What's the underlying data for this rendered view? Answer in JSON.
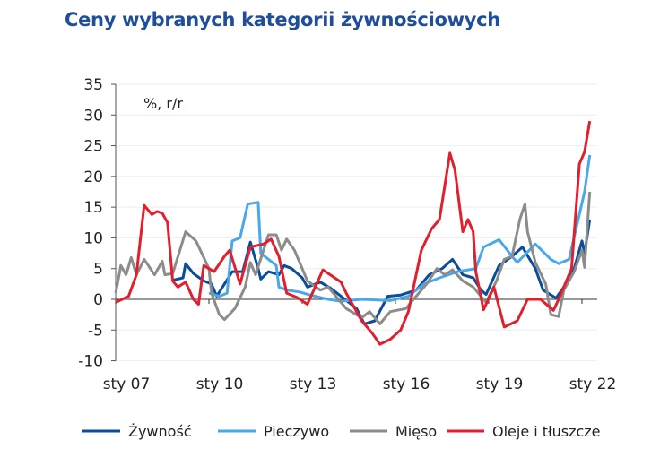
{
  "title": "Ceny wybranych kategorii żywnościowych",
  "chart_data": {
    "type": "line",
    "title": "Ceny wybranych kategorii żywnościowych",
    "unit_label": "%, r/r",
    "xlabel": "",
    "ylabel": "",
    "ylim": [
      -10,
      35
    ],
    "yticks": [
      -10,
      -5,
      0,
      5,
      10,
      15,
      20,
      25,
      30,
      35
    ],
    "xlim": [
      "2007-01",
      "2022-04"
    ],
    "xticks": [
      {
        "date": "2007-01",
        "label": "sty 07"
      },
      {
        "date": "2010-01",
        "label": "sty 10"
      },
      {
        "date": "2013-01",
        "label": "sty 13"
      },
      {
        "date": "2016-01",
        "label": "sty 16"
      },
      {
        "date": "2019-01",
        "label": "sty 19"
      },
      {
        "date": "2022-01",
        "label": "sty 22"
      }
    ],
    "grid": true,
    "legend_position": "bottom",
    "series": [
      {
        "name": "Żywność",
        "color": "#0b4d9a",
        "points": [
          [
            "2008-11",
            3.1
          ],
          [
            "2009-03",
            3.5
          ],
          [
            "2009-04",
            5.8
          ],
          [
            "2009-07",
            4.2
          ],
          [
            "2009-11",
            3
          ],
          [
            "2010-02",
            2.5
          ],
          [
            "2010-04",
            0.5
          ],
          [
            "2010-07",
            2.5
          ],
          [
            "2010-10",
            4.5
          ],
          [
            "2011-02",
            4.5
          ],
          [
            "2011-05",
            9.3
          ],
          [
            "2011-08",
            5
          ],
          [
            "2011-09",
            3.3
          ],
          [
            "2011-12",
            4.5
          ],
          [
            "2012-04",
            4
          ],
          [
            "2012-06",
            5.5
          ],
          [
            "2012-09",
            5
          ],
          [
            "2013-01",
            3.5
          ],
          [
            "2013-03",
            2
          ],
          [
            "2013-08",
            2.8
          ],
          [
            "2013-12",
            1.8
          ],
          [
            "2014-04",
            0.5
          ],
          [
            "2014-10",
            -1.5
          ],
          [
            "2015-01",
            -4
          ],
          [
            "2015-05",
            -3.5
          ],
          [
            "2015-10",
            0.5
          ],
          [
            "2016-03",
            0.7
          ],
          [
            "2016-09",
            1.5
          ],
          [
            "2017-02",
            4
          ],
          [
            "2017-07",
            5
          ],
          [
            "2017-11",
            6.5
          ],
          [
            "2018-03",
            4
          ],
          [
            "2018-07",
            3.5
          ],
          [
            "2018-10",
            1.5
          ],
          [
            "2018-12",
            0.8
          ],
          [
            "2019-05",
            5.5
          ],
          [
            "2019-10",
            7
          ],
          [
            "2020-02",
            8.5
          ],
          [
            "2020-07",
            5
          ],
          [
            "2020-10",
            1.5
          ],
          [
            "2021-03",
            0.2
          ],
          [
            "2021-06",
            2
          ],
          [
            "2021-10",
            5
          ],
          [
            "2022-01",
            9.5
          ],
          [
            "2022-02",
            7.5
          ],
          [
            "2022-04",
            13
          ]
        ]
      },
      {
        "name": "Pieczywo",
        "color": "#4aa8e8",
        "points": [
          [
            "2010-01",
            1
          ],
          [
            "2010-05",
            0.5
          ],
          [
            "2010-08",
            1
          ],
          [
            "2010-10",
            9.5
          ],
          [
            "2011-01",
            10
          ],
          [
            "2011-04",
            15.5
          ],
          [
            "2011-08",
            15.8
          ],
          [
            "2011-09",
            7.5
          ],
          [
            "2012-03",
            5.5
          ],
          [
            "2012-04",
            2
          ],
          [
            "2012-07",
            1.5
          ],
          [
            "2012-12",
            1.2
          ],
          [
            "2013-04",
            0.7
          ],
          [
            "2013-11",
            0
          ],
          [
            "2014-04",
            -0.3
          ],
          [
            "2014-12",
            0
          ],
          [
            "2015-11",
            -0.2
          ],
          [
            "2016-06",
            0.5
          ],
          [
            "2016-12",
            2.5
          ],
          [
            "2017-06",
            3.5
          ],
          [
            "2018-01",
            4.5
          ],
          [
            "2018-08",
            5
          ],
          [
            "2018-11",
            8.5
          ],
          [
            "2019-05",
            9.7
          ],
          [
            "2019-10",
            7
          ],
          [
            "2019-12",
            6
          ],
          [
            "2020-07",
            9
          ],
          [
            "2021-01",
            6.5
          ],
          [
            "2021-04",
            5.8
          ],
          [
            "2021-08",
            6.5
          ],
          [
            "2021-11",
            12
          ],
          [
            "2022-02",
            17.5
          ],
          [
            "2022-04",
            23.5
          ]
        ]
      },
      {
        "name": "Mięso",
        "color": "#8c8c8c",
        "points": [
          [
            "2007-01",
            1
          ],
          [
            "2007-03",
            5.5
          ],
          [
            "2007-05",
            4
          ],
          [
            "2007-07",
            6.8
          ],
          [
            "2007-09",
            4
          ],
          [
            "2007-12",
            6.5
          ],
          [
            "2008-04",
            4
          ],
          [
            "2008-07",
            6.2
          ],
          [
            "2008-08",
            4
          ],
          [
            "2008-11",
            4.2
          ],
          [
            "2009-04",
            11
          ],
          [
            "2009-08",
            9.5
          ],
          [
            "2010-01",
            5
          ],
          [
            "2010-02",
            1
          ],
          [
            "2010-05",
            -2.5
          ],
          [
            "2010-07",
            -3.3
          ],
          [
            "2010-11",
            -1.5
          ],
          [
            "2011-03",
            2
          ],
          [
            "2011-05",
            6
          ],
          [
            "2011-07",
            4
          ],
          [
            "2011-12",
            10.5
          ],
          [
            "2012-03",
            10.5
          ],
          [
            "2012-05",
            8
          ],
          [
            "2012-07",
            9.8
          ],
          [
            "2012-10",
            8
          ],
          [
            "2013-03",
            3
          ],
          [
            "2013-08",
            1.5
          ],
          [
            "2013-11",
            2
          ],
          [
            "2014-04",
            -0.5
          ],
          [
            "2014-06",
            -1.5
          ],
          [
            "2014-12",
            -3
          ],
          [
            "2015-03",
            -2
          ],
          [
            "2015-07",
            -4
          ],
          [
            "2015-11",
            -2
          ],
          [
            "2016-05",
            -1.5
          ],
          [
            "2016-08",
            0
          ],
          [
            "2017-01",
            2.5
          ],
          [
            "2017-05",
            5
          ],
          [
            "2017-08",
            4
          ],
          [
            "2017-11",
            4.8
          ],
          [
            "2018-03",
            3
          ],
          [
            "2018-07",
            2
          ],
          [
            "2018-10",
            0.5
          ],
          [
            "2018-12",
            -0.5
          ],
          [
            "2019-04",
            3
          ],
          [
            "2019-07",
            6.5
          ],
          [
            "2019-10",
            7
          ],
          [
            "2020-01",
            13
          ],
          [
            "2020-03",
            15.5
          ],
          [
            "2020-04",
            11
          ],
          [
            "2020-07",
            6
          ],
          [
            "2020-11",
            2.5
          ],
          [
            "2021-01",
            -2.5
          ],
          [
            "2021-04",
            -2.8
          ],
          [
            "2021-06",
            1.5
          ],
          [
            "2021-10",
            4.5
          ],
          [
            "2022-01",
            8
          ],
          [
            "2022-02",
            5.2
          ],
          [
            "2022-04",
            17.5
          ]
        ]
      },
      {
        "name": "Oleje i tłuszcze",
        "color": "#e0202e",
        "points": [
          [
            "2007-01",
            -0.5
          ],
          [
            "2007-06",
            0.5
          ],
          [
            "2007-09",
            4
          ],
          [
            "2007-12",
            15.3
          ],
          [
            "2008-03",
            13.8
          ],
          [
            "2008-05",
            14.3
          ],
          [
            "2008-07",
            14
          ],
          [
            "2008-09",
            12.5
          ],
          [
            "2008-11",
            3
          ],
          [
            "2009-01",
            2
          ],
          [
            "2009-04",
            2.8
          ],
          [
            "2009-07",
            0
          ],
          [
            "2009-09",
            -0.8
          ],
          [
            "2009-11",
            5.5
          ],
          [
            "2010-03",
            4.5
          ],
          [
            "2010-07",
            7
          ],
          [
            "2010-09",
            8
          ],
          [
            "2011-01",
            2.5
          ],
          [
            "2011-05",
            8.5
          ],
          [
            "2011-10",
            9
          ],
          [
            "2012-01",
            9.8
          ],
          [
            "2012-04",
            7
          ],
          [
            "2012-07",
            1
          ],
          [
            "2012-11",
            0.3
          ],
          [
            "2013-03",
            -0.8
          ],
          [
            "2013-09",
            4.8
          ],
          [
            "2014-04",
            2.8
          ],
          [
            "2014-06",
            1
          ],
          [
            "2014-12",
            -3.5
          ],
          [
            "2015-04",
            -5.5
          ],
          [
            "2015-07",
            -7.3
          ],
          [
            "2015-11",
            -6.5
          ],
          [
            "2016-03",
            -5
          ],
          [
            "2016-06",
            -2
          ],
          [
            "2016-11",
            8
          ],
          [
            "2017-03",
            11.5
          ],
          [
            "2017-06",
            13
          ],
          [
            "2017-10",
            23.8
          ],
          [
            "2017-12",
            21
          ],
          [
            "2018-03",
            11
          ],
          [
            "2018-05",
            13
          ],
          [
            "2018-07",
            11
          ],
          [
            "2018-08",
            4.5
          ],
          [
            "2018-11",
            -1.7
          ],
          [
            "2019-03",
            2
          ],
          [
            "2019-07",
            -4.5
          ],
          [
            "2019-12",
            -3.5
          ],
          [
            "2020-04",
            0
          ],
          [
            "2020-09",
            0
          ],
          [
            "2021-02",
            -1.8
          ],
          [
            "2021-04",
            0
          ],
          [
            "2021-09",
            5
          ],
          [
            "2021-12",
            22
          ],
          [
            "2022-02",
            24
          ],
          [
            "2022-04",
            29
          ]
        ]
      }
    ]
  }
}
